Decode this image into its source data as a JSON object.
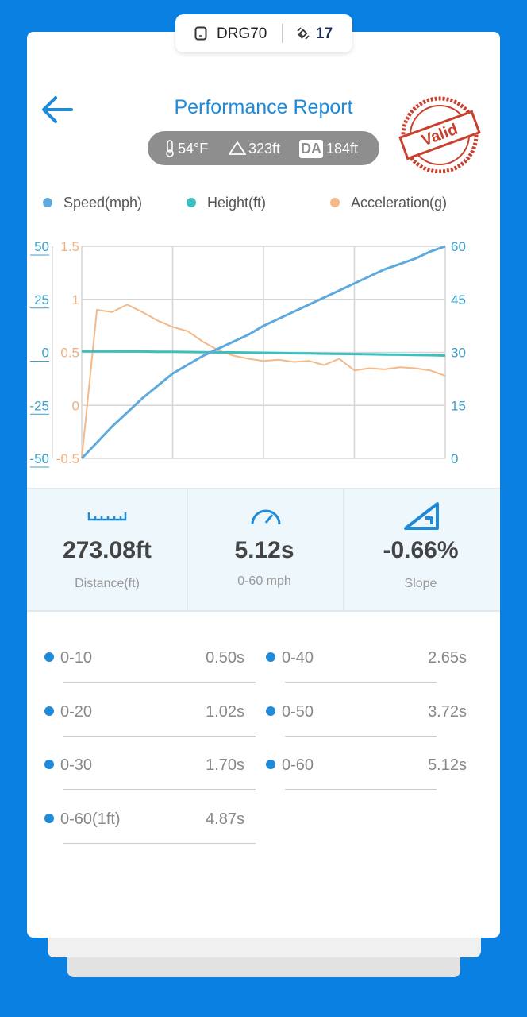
{
  "header": {
    "device": "DRG70",
    "satellites": "17"
  },
  "title": "Performance Report",
  "conditions": {
    "temperature": "54°F",
    "altitude": "323ft",
    "da_label": "DA",
    "density_altitude": "184ft"
  },
  "stamp": "Valid",
  "chart_data": {
    "type": "line",
    "categories": [
      null,
      null,
      null,
      null,
      null,
      null,
      null,
      null,
      null,
      null,
      null,
      null,
      null,
      null,
      null,
      null,
      null,
      null,
      null,
      null,
      null,
      null,
      null,
      null,
      null
    ],
    "series": [
      {
        "name": "Speed(mph)",
        "color": "#5ea9dd",
        "axis": "y2",
        "values": [
          0,
          4.5,
          9,
          13,
          17,
          20.5,
          24,
          26.5,
          29,
          31,
          33,
          35,
          37.5,
          39.5,
          41.5,
          43.5,
          45.5,
          47.5,
          49.5,
          51.5,
          53.5,
          55,
          56.5,
          58.5,
          60
        ]
      },
      {
        "name": "Height(ft)",
        "color": "#3cbfbf",
        "axis": "y",
        "values": [
          0.5,
          0.5,
          0.5,
          0.4,
          0.4,
          0.3,
          0.3,
          0.2,
          0.1,
          0,
          0,
          -0.1,
          -0.2,
          -0.3,
          -0.4,
          -0.5,
          -0.6,
          -0.7,
          -0.8,
          -0.9,
          -1,
          -1.1,
          -1.2,
          -1.3,
          -1.5
        ]
      },
      {
        "name": "Acceleration(g)",
        "color": "#f4b988",
        "axis": "y3",
        "values": [
          -0.5,
          0.9,
          0.88,
          0.95,
          0.88,
          0.8,
          0.74,
          0.7,
          0.6,
          0.52,
          0.47,
          0.44,
          0.42,
          0.43,
          0.41,
          0.42,
          0.38,
          0.44,
          0.33,
          0.35,
          0.34,
          0.36,
          0.35,
          0.33,
          0.28
        ]
      }
    ],
    "ylim": [
      -50,
      50
    ],
    "yticks": [
      -50,
      -25,
      0,
      25,
      50
    ],
    "ycolor": "#3aa0c8",
    "y2lim": [
      0,
      60
    ],
    "y2ticks": [
      0,
      15,
      30,
      45,
      60
    ],
    "y2color": "#3aa0c8",
    "y3lim": [
      -0.5,
      1.5
    ],
    "y3ticks": [
      -0.5,
      0,
      0.5,
      1,
      1.5
    ],
    "y3color": "#f0b07e",
    "grid": true,
    "legend": "top"
  },
  "stats": [
    {
      "value": "273.08ft",
      "label": "Distance(ft)"
    },
    {
      "value": "5.12s",
      "label": "0-60 mph"
    },
    {
      "value": "-0.66%",
      "label": "Slope"
    }
  ],
  "splits": [
    [
      "0-10",
      "0.50s"
    ],
    [
      "0-40",
      "2.65s"
    ],
    [
      "0-20",
      "1.02s"
    ],
    [
      "0-50",
      "3.72s"
    ],
    [
      "0-30",
      "1.70s"
    ],
    [
      "0-60",
      "5.12s"
    ],
    [
      "0-60(1ft)",
      "4.87s"
    ]
  ]
}
